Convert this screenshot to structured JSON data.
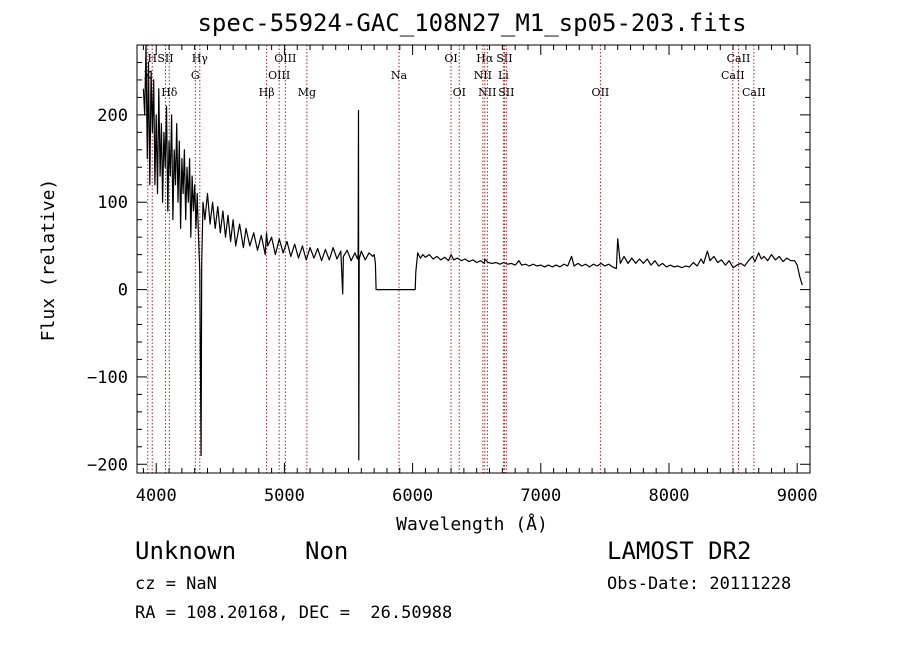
{
  "chart_data": {
    "type": "line",
    "title": "spec-55924-GAC_108N27_M1_sp05-203.fits",
    "xlabel": "Wavelength (Å)",
    "ylabel": "Flux (relative)",
    "xlim": [
      3850,
      9100
    ],
    "ylim": [
      -210,
      280
    ],
    "xticks": [
      4000,
      5000,
      6000,
      7000,
      8000,
      9000
    ],
    "yticks": [
      -200,
      -100,
      0,
      100,
      200
    ],
    "xtick_labels": [
      "4000",
      "5000",
      "6000",
      "7000",
      "8000",
      "9000"
    ],
    "ytick_labels": [
      "−200",
      "−100",
      "0",
      "100",
      "200"
    ],
    "grid": false,
    "series": [
      {
        "values": [
          [
            3900,
            230
          ],
          [
            3910,
            200
          ],
          [
            3920,
            280
          ],
          [
            3930,
            150
          ],
          [
            3940,
            260
          ],
          [
            3950,
            120
          ],
          [
            3960,
            250
          ],
          [
            3970,
            180
          ],
          [
            3980,
            240
          ],
          [
            3990,
            120
          ],
          [
            4000,
            200
          ],
          [
            4010,
            110
          ],
          [
            4020,
            230
          ],
          [
            4030,
            130
          ],
          [
            4040,
            190
          ],
          [
            4050,
            100
          ],
          [
            4060,
            180
          ],
          [
            4070,
            140
          ],
          [
            4080,
            210
          ],
          [
            4090,
            90
          ],
          [
            4100,
            170
          ],
          [
            4110,
            130
          ],
          [
            4120,
            200
          ],
          [
            4130,
            80
          ],
          [
            4140,
            160
          ],
          [
            4150,
            120
          ],
          [
            4160,
            190
          ],
          [
            4170,
            100
          ],
          [
            4180,
            170
          ],
          [
            4190,
            70
          ],
          [
            4200,
            150
          ],
          [
            4210,
            110
          ],
          [
            4220,
            160
          ],
          [
            4230,
            80
          ],
          [
            4240,
            140
          ],
          [
            4250,
            100
          ],
          [
            4260,
            150
          ],
          [
            4270,
            60
          ],
          [
            4280,
            130
          ],
          [
            4290,
            90
          ],
          [
            4300,
            120
          ],
          [
            4310,
            70
          ],
          [
            4320,
            110
          ],
          [
            4330,
            60
          ],
          [
            4340,
            20
          ],
          [
            4345,
            -100
          ],
          [
            4350,
            -190
          ],
          [
            4355,
            30
          ],
          [
            4365,
            100
          ],
          [
            4380,
            80
          ],
          [
            4400,
            110
          ],
          [
            4420,
            75
          ],
          [
            4440,
            100
          ],
          [
            4460,
            70
          ],
          [
            4480,
            95
          ],
          [
            4500,
            65
          ],
          [
            4520,
            90
          ],
          [
            4540,
            60
          ],
          [
            4560,
            85
          ],
          [
            4580,
            55
          ],
          [
            4600,
            80
          ],
          [
            4620,
            50
          ],
          [
            4650,
            75
          ],
          [
            4680,
            48
          ],
          [
            4700,
            70
          ],
          [
            4730,
            50
          ],
          [
            4760,
            65
          ],
          [
            4790,
            45
          ],
          [
            4820,
            62
          ],
          [
            4850,
            40
          ],
          [
            4860,
            65
          ],
          [
            4870,
            50
          ],
          [
            4900,
            60
          ],
          [
            4930,
            40
          ],
          [
            4960,
            58
          ],
          [
            4990,
            42
          ],
          [
            5020,
            55
          ],
          [
            5050,
            38
          ],
          [
            5080,
            52
          ],
          [
            5110,
            36
          ],
          [
            5140,
            50
          ],
          [
            5170,
            34
          ],
          [
            5200,
            48
          ],
          [
            5230,
            36
          ],
          [
            5260,
            47
          ],
          [
            5290,
            33
          ],
          [
            5320,
            46
          ],
          [
            5350,
            34
          ],
          [
            5380,
            48
          ],
          [
            5410,
            35
          ],
          [
            5440,
            44
          ],
          [
            5455,
            -5
          ],
          [
            5460,
            38
          ],
          [
            5490,
            45
          ],
          [
            5520,
            33
          ],
          [
            5550,
            42
          ],
          [
            5570,
            35
          ],
          [
            5575,
            40
          ],
          [
            5578,
            205
          ],
          [
            5580,
            -195
          ],
          [
            5583,
            35
          ],
          [
            5600,
            44
          ],
          [
            5630,
            34
          ],
          [
            5660,
            42
          ],
          [
            5690,
            38
          ],
          [
            5700,
            40
          ],
          [
            5710,
            30
          ],
          [
            5715,
            0
          ],
          [
            5730,
            0
          ],
          [
            5800,
            0
          ],
          [
            5900,
            0
          ],
          [
            6000,
            0
          ],
          [
            6020,
            0
          ],
          [
            6025,
            20
          ],
          [
            6040,
            42
          ],
          [
            6060,
            36
          ],
          [
            6080,
            40
          ],
          [
            6100,
            37
          ],
          [
            6130,
            40
          ],
          [
            6160,
            35
          ],
          [
            6190,
            38
          ],
          [
            6220,
            34
          ],
          [
            6250,
            37
          ],
          [
            6280,
            33
          ],
          [
            6300,
            40
          ],
          [
            6320,
            34
          ],
          [
            6350,
            36
          ],
          [
            6380,
            33
          ],
          [
            6410,
            35
          ],
          [
            6440,
            32
          ],
          [
            6470,
            34
          ],
          [
            6500,
            31
          ],
          [
            6530,
            33
          ],
          [
            6560,
            30
          ],
          [
            6563,
            35
          ],
          [
            6590,
            31
          ],
          [
            6620,
            30
          ],
          [
            6650,
            31
          ],
          [
            6680,
            29
          ],
          [
            6710,
            31
          ],
          [
            6740,
            29
          ],
          [
            6770,
            30
          ],
          [
            6800,
            28
          ],
          [
            6830,
            33
          ],
          [
            6850,
            28
          ],
          [
            6880,
            29
          ],
          [
            6910,
            27
          ],
          [
            6940,
            29
          ],
          [
            6970,
            27
          ],
          [
            7000,
            28
          ],
          [
            7030,
            26
          ],
          [
            7060,
            28
          ],
          [
            7090,
            26
          ],
          [
            7120,
            28
          ],
          [
            7150,
            26
          ],
          [
            7180,
            29
          ],
          [
            7210,
            27
          ],
          [
            7240,
            38
          ],
          [
            7260,
            27
          ],
          [
            7290,
            30
          ],
          [
            7320,
            27
          ],
          [
            7350,
            29
          ],
          [
            7380,
            26
          ],
          [
            7410,
            29
          ],
          [
            7440,
            27
          ],
          [
            7470,
            30
          ],
          [
            7500,
            27
          ],
          [
            7530,
            29
          ],
          [
            7560,
            26
          ],
          [
            7590,
            24
          ],
          [
            7600,
            58
          ],
          [
            7620,
            30
          ],
          [
            7650,
            38
          ],
          [
            7680,
            30
          ],
          [
            7710,
            36
          ],
          [
            7740,
            30
          ],
          [
            7770,
            35
          ],
          [
            7800,
            30
          ],
          [
            7830,
            35
          ],
          [
            7860,
            28
          ],
          [
            7890,
            33
          ],
          [
            7920,
            27
          ],
          [
            7950,
            30
          ],
          [
            7980,
            26
          ],
          [
            8010,
            28
          ],
          [
            8040,
            26
          ],
          [
            8070,
            27
          ],
          [
            8100,
            25
          ],
          [
            8130,
            27
          ],
          [
            8160,
            26
          ],
          [
            8190,
            31
          ],
          [
            8220,
            27
          ],
          [
            8250,
            35
          ],
          [
            8270,
            30
          ],
          [
            8300,
            44
          ],
          [
            8320,
            33
          ],
          [
            8350,
            38
          ],
          [
            8380,
            31
          ],
          [
            8410,
            34
          ],
          [
            8440,
            28
          ],
          [
            8470,
            33
          ],
          [
            8500,
            25
          ],
          [
            8530,
            28
          ],
          [
            8560,
            30
          ],
          [
            8590,
            27
          ],
          [
            8620,
            33
          ],
          [
            8650,
            38
          ],
          [
            8670,
            32
          ],
          [
            8700,
            42
          ],
          [
            8720,
            35
          ],
          [
            8740,
            38
          ],
          [
            8770,
            33
          ],
          [
            8800,
            40
          ],
          [
            8830,
            34
          ],
          [
            8860,
            38
          ],
          [
            8890,
            32
          ],
          [
            8920,
            36
          ],
          [
            8950,
            33
          ],
          [
            8980,
            33
          ],
          [
            9000,
            28
          ],
          [
            9020,
            15
          ],
          [
            9040,
            5
          ]
        ]
      }
    ],
    "lines": [
      {
        "label": "K",
        "wavelength": 3934,
        "row": 2
      },
      {
        "label": "H",
        "wavelength": 3969,
        "row": 1
      },
      {
        "label": "SII",
        "wavelength": 4072,
        "row": 1
      },
      {
        "label": "Hδ",
        "wavelength": 4102,
        "row": 3
      },
      {
        "label": "Hγ",
        "wavelength": 4340,
        "row": 1
      },
      {
        "label": "G",
        "wavelength": 4305,
        "row": 2
      },
      {
        "label": "Hβ",
        "wavelength": 4861,
        "row": 3
      },
      {
        "label": "OIII",
        "wavelength": 4959,
        "row": 2
      },
      {
        "label": "OIII",
        "wavelength": 5007,
        "row": 1
      },
      {
        "label": "Mg",
        "wavelength": 5175,
        "row": 3
      },
      {
        "label": "Na",
        "wavelength": 5894,
        "row": 2
      },
      {
        "label": "OI",
        "wavelength": 6300,
        "row": 1
      },
      {
        "label": "OI",
        "wavelength": 6364,
        "row": 3
      },
      {
        "label": "NII",
        "wavelength": 6548,
        "row": 2
      },
      {
        "label": "Hα",
        "wavelength": 6563,
        "row": 1
      },
      {
        "label": "NII",
        "wavelength": 6583,
        "row": 3
      },
      {
        "label": "Li",
        "wavelength": 6708,
        "row": 2
      },
      {
        "label": "SII",
        "wavelength": 6717,
        "row": 1
      },
      {
        "label": "SII",
        "wavelength": 6731,
        "row": 3
      },
      {
        "label": "OII",
        "wavelength": 7465,
        "row": 3
      },
      {
        "label": "CaII",
        "wavelength": 8498,
        "row": 2
      },
      {
        "label": "CaII",
        "wavelength": 8542,
        "row": 1
      },
      {
        "label": "CaII",
        "wavelength": 8662,
        "row": 3
      }
    ],
    "line_color": "#b22222"
  },
  "info": {
    "class": "Unknown",
    "subclass": "Non",
    "survey": "LAMOST DR2",
    "cz": "cz = NaN",
    "obs_date": "Obs-Date: 20111228",
    "radec": "RA = 108.20168, DEC =  26.50988"
  }
}
